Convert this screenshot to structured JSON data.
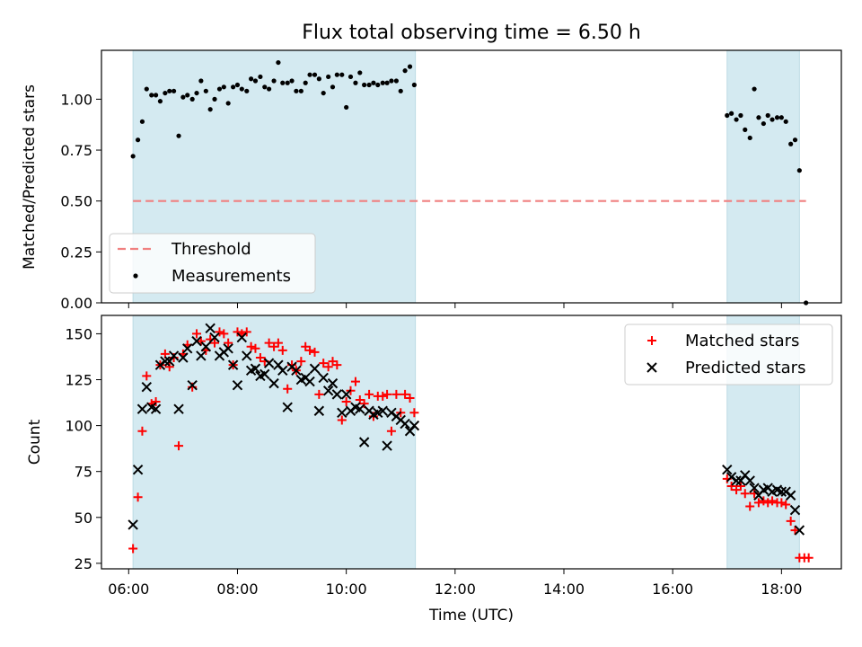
{
  "title": "Flux total observing time = 6.50 h",
  "chart_data": [
    {
      "type": "scatter",
      "ylabel": "Matched/Predicted stars",
      "xlim": [
        5.5,
        19.1
      ],
      "ylim": [
        0,
        1.24
      ],
      "yticks": [
        0.0,
        0.25,
        0.5,
        0.75,
        1.0
      ],
      "ytick_labels": [
        "0.00",
        "0.25",
        "0.50",
        "0.75",
        "1.00"
      ],
      "shaded_regions": [
        [
          6.08,
          11.27
        ],
        [
          17.0,
          18.33
        ]
      ],
      "shade_color": "#d4eaf1",
      "legend_position": "lower-left",
      "series": [
        {
          "name": "Threshold",
          "kind": "dashed-line",
          "color": "#f08080",
          "x": [
            6.08,
            18.45
          ],
          "y": [
            0.5,
            0.5
          ]
        },
        {
          "name": "Measurements",
          "kind": "dot",
          "color": "#000000",
          "x": [
            6.08,
            6.17,
            6.25,
            6.33,
            6.42,
            6.5,
            6.58,
            6.67,
            6.75,
            6.83,
            6.92,
            7.0,
            7.08,
            7.17,
            7.25,
            7.33,
            7.42,
            7.5,
            7.58,
            7.67,
            7.75,
            7.83,
            7.92,
            8.0,
            8.08,
            8.17,
            8.25,
            8.33,
            8.42,
            8.5,
            8.58,
            8.67,
            8.75,
            8.83,
            8.92,
            9.0,
            9.08,
            9.17,
            9.25,
            9.33,
            9.42,
            9.5,
            9.58,
            9.67,
            9.75,
            9.83,
            9.92,
            10.0,
            10.08,
            10.17,
            10.25,
            10.33,
            10.42,
            10.5,
            10.58,
            10.67,
            10.75,
            10.83,
            10.92,
            11.0,
            11.08,
            11.17,
            11.25,
            17.0,
            17.08,
            17.17,
            17.25,
            17.33,
            17.42,
            17.5,
            17.58,
            17.67,
            17.75,
            17.83,
            17.92,
            18.0,
            18.08,
            18.17,
            18.25,
            18.33,
            18.45
          ],
          "y": [
            0.72,
            0.8,
            0.89,
            1.05,
            1.02,
            1.02,
            0.99,
            1.03,
            1.04,
            1.04,
            0.82,
            1.01,
            1.02,
            1.0,
            1.03,
            1.09,
            1.04,
            0.95,
            1.0,
            1.05,
            1.06,
            0.98,
            1.06,
            1.07,
            1.05,
            1.04,
            1.1,
            1.09,
            1.11,
            1.06,
            1.05,
            1.09,
            1.18,
            1.08,
            1.08,
            1.09,
            1.04,
            1.04,
            1.08,
            1.12,
            1.12,
            1.1,
            1.03,
            1.11,
            1.06,
            1.12,
            1.12,
            0.96,
            1.11,
            1.08,
            1.13,
            1.07,
            1.07,
            1.08,
            1.07,
            1.08,
            1.08,
            1.09,
            1.09,
            1.04,
            1.14,
            1.16,
            1.07,
            0.92,
            0.93,
            0.9,
            0.92,
            0.85,
            0.81,
            1.05,
            0.91,
            0.88,
            0.92,
            0.9,
            0.91,
            0.91,
            0.89,
            0.78,
            0.8,
            0.65,
            0.0
          ]
        }
      ]
    },
    {
      "type": "scatter",
      "xlabel": "Time (UTC)",
      "ylabel": "Count",
      "xlim": [
        5.5,
        19.1
      ],
      "ylim": [
        22,
        160
      ],
      "xticks": [
        6,
        8,
        10,
        12,
        14,
        16,
        18
      ],
      "xtick_labels": [
        "06:00",
        "08:00",
        "10:00",
        "12:00",
        "14:00",
        "16:00",
        "18:00"
      ],
      "yticks": [
        25,
        50,
        75,
        100,
        125,
        150
      ],
      "ytick_labels": [
        "25",
        "50",
        "75",
        "100",
        "125",
        "150"
      ],
      "shaded_regions": [
        [
          6.08,
          11.27
        ],
        [
          17.0,
          18.33
        ]
      ],
      "shade_color": "#d4eaf1",
      "legend_position": "top-right",
      "series": [
        {
          "name": "Matched stars",
          "marker": "plus",
          "color": "#ff0000",
          "x": [
            6.08,
            6.17,
            6.25,
            6.33,
            6.42,
            6.5,
            6.58,
            6.67,
            6.75,
            6.83,
            6.92,
            7.0,
            7.08,
            7.17,
            7.25,
            7.33,
            7.42,
            7.5,
            7.58,
            7.67,
            7.75,
            7.83,
            7.92,
            8.0,
            8.08,
            8.17,
            8.25,
            8.33,
            8.42,
            8.5,
            8.58,
            8.67,
            8.75,
            8.83,
            8.92,
            9.0,
            9.08,
            9.17,
            9.25,
            9.33,
            9.42,
            9.5,
            9.58,
            9.67,
            9.75,
            9.83,
            9.92,
            10.0,
            10.08,
            10.17,
            10.25,
            10.33,
            10.42,
            10.5,
            10.58,
            10.67,
            10.75,
            10.83,
            10.92,
            11.0,
            11.08,
            11.17,
            11.25,
            17.0,
            17.08,
            17.17,
            17.25,
            17.33,
            17.42,
            17.5,
            17.58,
            17.67,
            17.75,
            17.83,
            17.92,
            18.0,
            18.08,
            18.17,
            18.25,
            18.33,
            18.42,
            18.5
          ],
          "y": [
            33,
            61,
            97,
            127,
            112,
            113,
            133,
            139,
            132,
            137,
            89,
            139,
            144,
            121,
            150,
            146,
            141,
            147,
            145,
            151,
            150,
            145,
            133,
            151,
            150,
            151,
            143,
            142,
            137,
            135,
            145,
            143,
            145,
            141,
            120,
            133,
            130,
            135,
            143,
            141,
            140,
            117,
            134,
            132,
            135,
            133,
            103,
            113,
            119,
            124,
            114,
            112,
            117,
            105,
            116,
            116,
            117,
            97,
            117,
            107,
            117,
            115,
            107,
            71,
            67,
            65,
            67,
            63,
            56,
            63,
            58,
            59,
            58,
            59,
            58,
            58,
            57,
            48,
            43,
            28,
            28,
            28
          ]
        },
        {
          "name": "Predicted stars",
          "marker": "x",
          "color": "#000000",
          "x": [
            6.08,
            6.17,
            6.25,
            6.33,
            6.42,
            6.5,
            6.58,
            6.67,
            6.75,
            6.83,
            6.92,
            7.0,
            7.08,
            7.17,
            7.25,
            7.33,
            7.42,
            7.5,
            7.58,
            7.67,
            7.75,
            7.83,
            7.92,
            8.0,
            8.08,
            8.17,
            8.25,
            8.33,
            8.42,
            8.5,
            8.58,
            8.67,
            8.75,
            8.83,
            8.92,
            9.0,
            9.08,
            9.17,
            9.25,
            9.33,
            9.42,
            9.5,
            9.58,
            9.67,
            9.75,
            9.83,
            9.92,
            10.0,
            10.08,
            10.17,
            10.25,
            10.33,
            10.42,
            10.5,
            10.58,
            10.67,
            10.75,
            10.83,
            10.92,
            11.0,
            11.08,
            11.17,
            11.25,
            17.0,
            17.08,
            17.17,
            17.25,
            17.33,
            17.42,
            17.5,
            17.58,
            17.67,
            17.75,
            17.83,
            17.92,
            18.0,
            18.08,
            18.17,
            18.25,
            18.33
          ],
          "y": [
            46,
            76,
            109,
            121,
            110,
            109,
            133,
            135,
            135,
            138,
            109,
            137,
            142,
            122,
            146,
            138,
            143,
            153,
            148,
            138,
            140,
            142,
            133,
            122,
            148,
            138,
            130,
            131,
            127,
            128,
            134,
            123,
            133,
            130,
            110,
            132,
            130,
            125,
            126,
            124,
            131,
            108,
            126,
            119,
            123,
            117,
            107,
            117,
            108,
            110,
            109,
            91,
            108,
            106,
            107,
            108,
            89,
            107,
            105,
            103,
            101,
            97,
            100,
            76,
            72,
            70,
            70,
            73,
            70,
            66,
            62,
            65,
            66,
            64,
            65,
            64,
            64,
            62,
            54,
            43
          ]
        }
      ]
    }
  ]
}
